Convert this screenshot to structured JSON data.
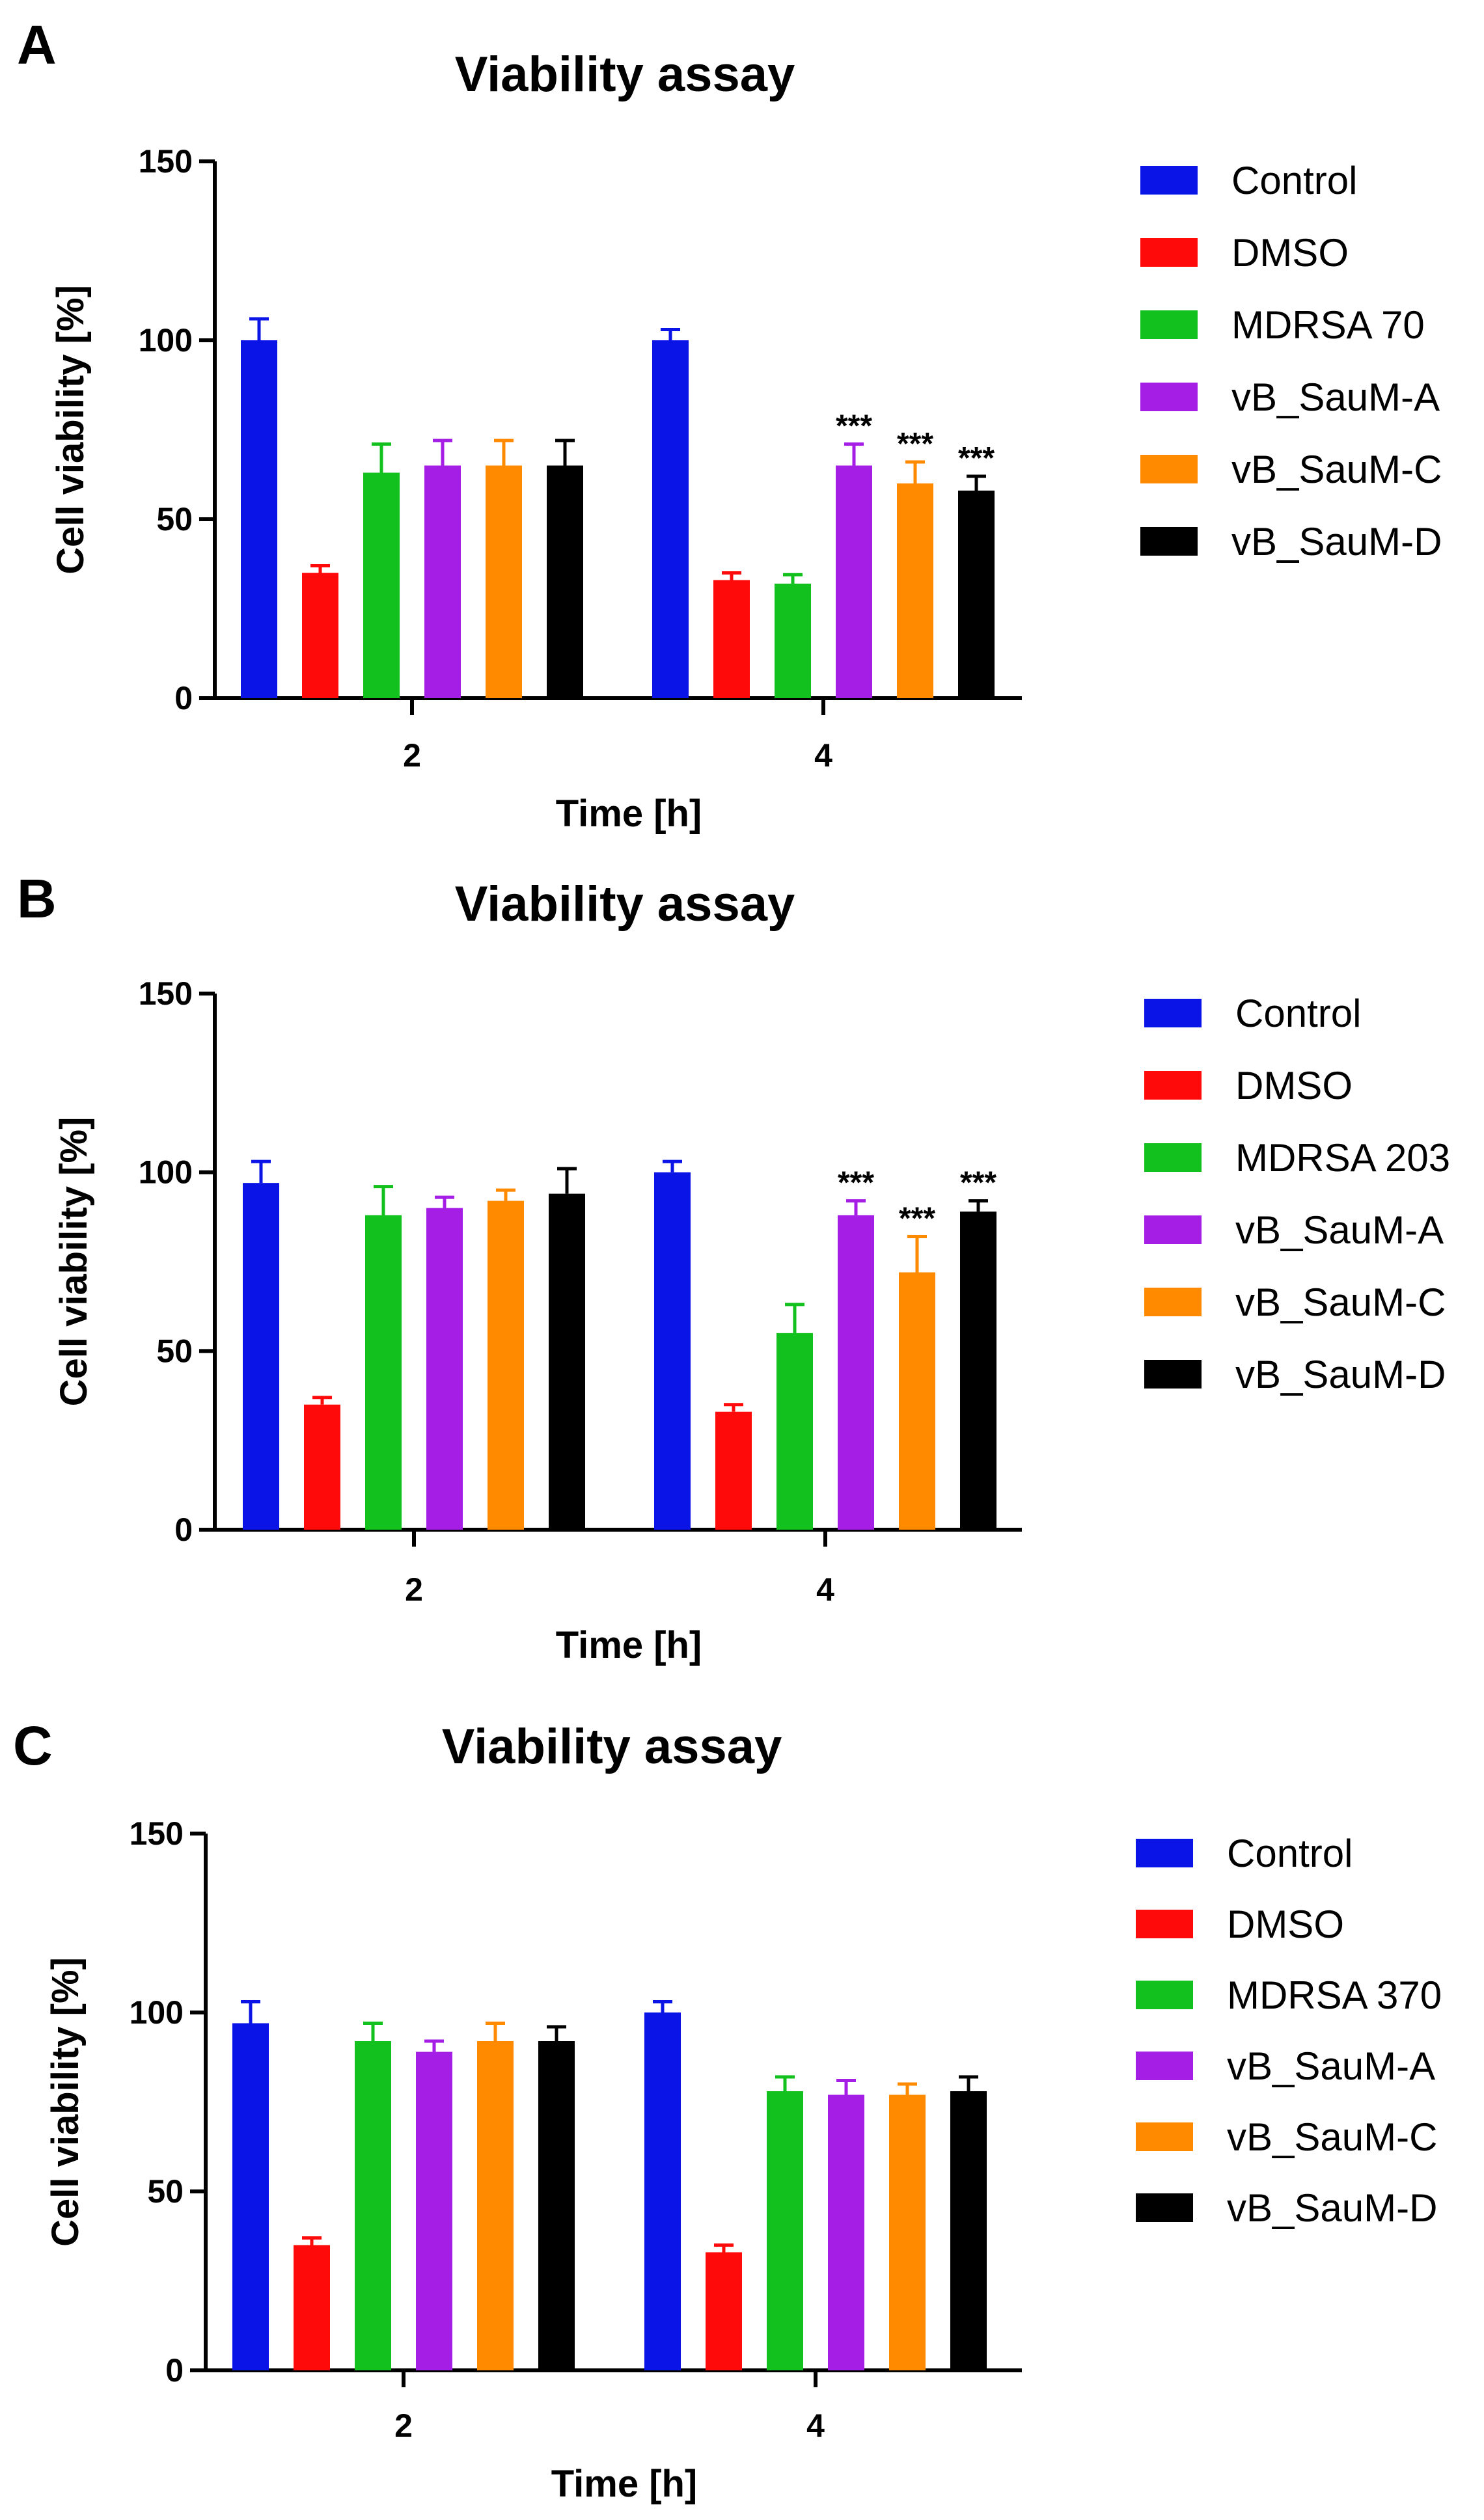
{
  "series_colors": [
    "#0a14e6",
    "#ff0a0a",
    "#12c01e",
    "#a51ee6",
    "#ff8a00",
    "#000000"
  ],
  "chart_data": [
    {
      "type": "bar",
      "panel": "A",
      "title": "Viability assay",
      "xlabel": "Time [h]",
      "ylabel": "Cell viability [%]",
      "ylim": [
        0,
        150
      ],
      "yticks": [
        0,
        50,
        100,
        150
      ],
      "categories": [
        "2",
        "4"
      ],
      "legend_position": "right",
      "series": [
        {
          "name": "Control",
          "values": [
            100,
            100
          ],
          "errors": [
            6,
            3
          ],
          "sig": [
            "",
            ""
          ]
        },
        {
          "name": "DMSO",
          "values": [
            35,
            33
          ],
          "errors": [
            2,
            2
          ],
          "sig": [
            "",
            ""
          ]
        },
        {
          "name": "MDRSA 70",
          "values": [
            63,
            32
          ],
          "errors": [
            8,
            2.5
          ],
          "sig": [
            "",
            ""
          ]
        },
        {
          "name": "vB_SauM-A",
          "values": [
            65,
            65
          ],
          "errors": [
            7,
            6
          ],
          "sig": [
            "",
            "***"
          ]
        },
        {
          "name": "vB_SauM-C",
          "values": [
            65,
            60
          ],
          "errors": [
            7,
            6
          ],
          "sig": [
            "",
            "***"
          ]
        },
        {
          "name": "vB_SauM-D",
          "values": [
            65,
            58
          ],
          "errors": [
            7,
            4
          ],
          "sig": [
            "",
            "***"
          ]
        }
      ]
    },
    {
      "type": "bar",
      "panel": "B",
      "title": "Viability assay",
      "xlabel": "Time [h]",
      "ylabel": "Cell viability [%]",
      "ylim": [
        0,
        150
      ],
      "yticks": [
        0,
        50,
        100,
        150
      ],
      "categories": [
        "2",
        "4"
      ],
      "legend_position": "right",
      "series": [
        {
          "name": "Control",
          "values": [
            97,
            100
          ],
          "errors": [
            6,
            3
          ],
          "sig": [
            "",
            ""
          ]
        },
        {
          "name": "DMSO",
          "values": [
            35,
            33
          ],
          "errors": [
            2,
            2
          ],
          "sig": [
            "",
            ""
          ]
        },
        {
          "name": "MDRSA 203",
          "values": [
            88,
            55
          ],
          "errors": [
            8,
            8
          ],
          "sig": [
            "",
            ""
          ]
        },
        {
          "name": "vB_SauM-A",
          "values": [
            90,
            88
          ],
          "errors": [
            3,
            4
          ],
          "sig": [
            "",
            "***"
          ]
        },
        {
          "name": "vB_SauM-C",
          "values": [
            92,
            72
          ],
          "errors": [
            3,
            10
          ],
          "sig": [
            "",
            "***"
          ]
        },
        {
          "name": "vB_SauM-D",
          "values": [
            94,
            89
          ],
          "errors": [
            7,
            3
          ],
          "sig": [
            "",
            "***"
          ]
        }
      ]
    },
    {
      "type": "bar",
      "panel": "C",
      "title": "Viability assay",
      "xlabel": "Time [h]",
      "ylabel": "Cell viability [%]",
      "ylim": [
        0,
        150
      ],
      "yticks": [
        0,
        50,
        100,
        150
      ],
      "categories": [
        "2",
        "4"
      ],
      "legend_position": "right",
      "series": [
        {
          "name": "Control",
          "values": [
            97,
            100
          ],
          "errors": [
            6,
            3
          ],
          "sig": [
            "",
            ""
          ]
        },
        {
          "name": "DMSO",
          "values": [
            35,
            33
          ],
          "errors": [
            2,
            2
          ],
          "sig": [
            "",
            ""
          ]
        },
        {
          "name": "MDRSA 370",
          "values": [
            92,
            78
          ],
          "errors": [
            5,
            4
          ],
          "sig": [
            "",
            ""
          ]
        },
        {
          "name": "vB_SauM-A",
          "values": [
            89,
            77
          ],
          "errors": [
            3,
            4
          ],
          "sig": [
            "",
            ""
          ]
        },
        {
          "name": "vB_SauM-C",
          "values": [
            92,
            77
          ],
          "errors": [
            5,
            3
          ],
          "sig": [
            "",
            ""
          ]
        },
        {
          "name": "vB_SauM-D",
          "values": [
            92,
            78
          ],
          "errors": [
            4,
            4
          ],
          "sig": [
            "",
            ""
          ]
        }
      ]
    }
  ]
}
